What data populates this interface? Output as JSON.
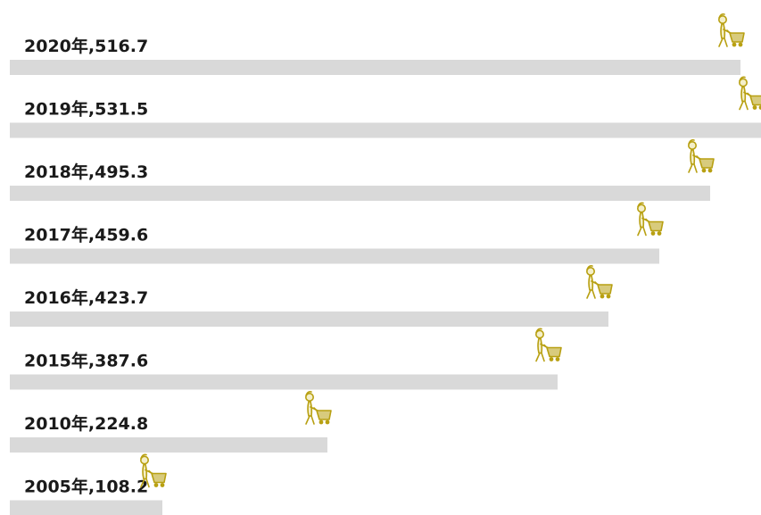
{
  "colors": {
    "bar": "#d9d9d9",
    "icon": "#b8a012",
    "label": "#1a1a1a",
    "background": "#ffffff"
  },
  "icon": "shopper-with-cart-icon",
  "chart_data": {
    "type": "bar",
    "orientation": "horizontal",
    "title": "",
    "xlabel": "",
    "ylabel": "",
    "categories": [
      "2020年",
      "2019年",
      "2018年",
      "2017年",
      "2016年",
      "2015年",
      "2010年",
      "2005年"
    ],
    "values": [
      516.7,
      531.5,
      495.3,
      459.6,
      423.7,
      387.6,
      224.8,
      108.2
    ],
    "labels": [
      "2020年,516.7",
      "2019年,531.5",
      "2018年,495.3",
      "2017年,459.6",
      "2016年,423.7",
      "2015年,387.6",
      "2010年,224.8",
      "2005年,108.2"
    ],
    "xlim": [
      0,
      531.5
    ],
    "grid": false,
    "legend": "none"
  }
}
